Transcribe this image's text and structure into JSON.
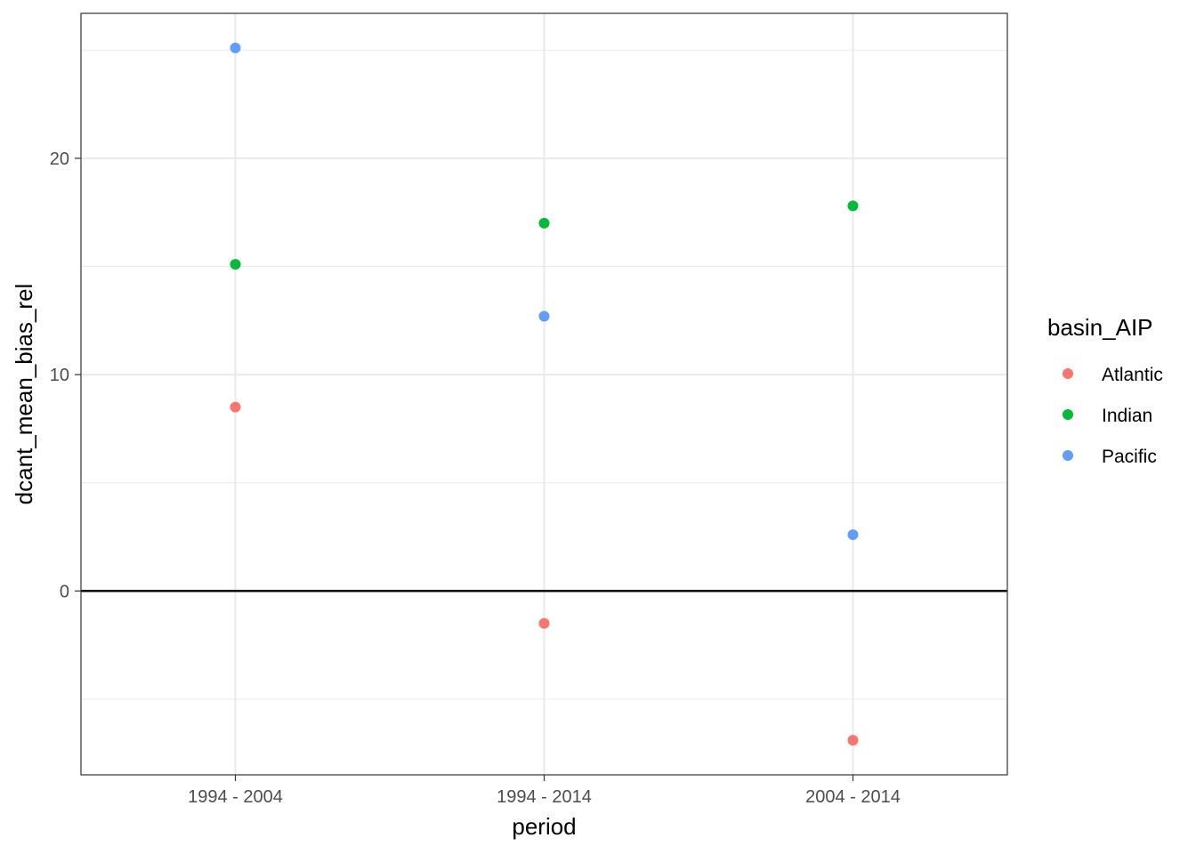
{
  "chart_data": {
    "type": "scatter",
    "title": "",
    "xlabel": "period",
    "ylabel": "dcant_mean_bias_rel",
    "categories": [
      "1994 - 2004",
      "1994 - 2014",
      "2004 - 2014"
    ],
    "ylim": [
      -8.5,
      26.7
    ],
    "yticks": [
      0,
      10,
      20
    ],
    "grid": true,
    "hline": 0,
    "legend": {
      "title": "basin_AIP",
      "placement": "right"
    },
    "series": [
      {
        "name": "Atlantic",
        "color": "#F8766D",
        "values": [
          8.5,
          -1.5,
          -6.9
        ]
      },
      {
        "name": "Indian",
        "color": "#00BA38",
        "values": [
          15.1,
          17.0,
          17.8
        ]
      },
      {
        "name": "Pacific",
        "color": "#619CFF",
        "values": [
          25.1,
          12.7,
          2.6
        ]
      }
    ]
  }
}
